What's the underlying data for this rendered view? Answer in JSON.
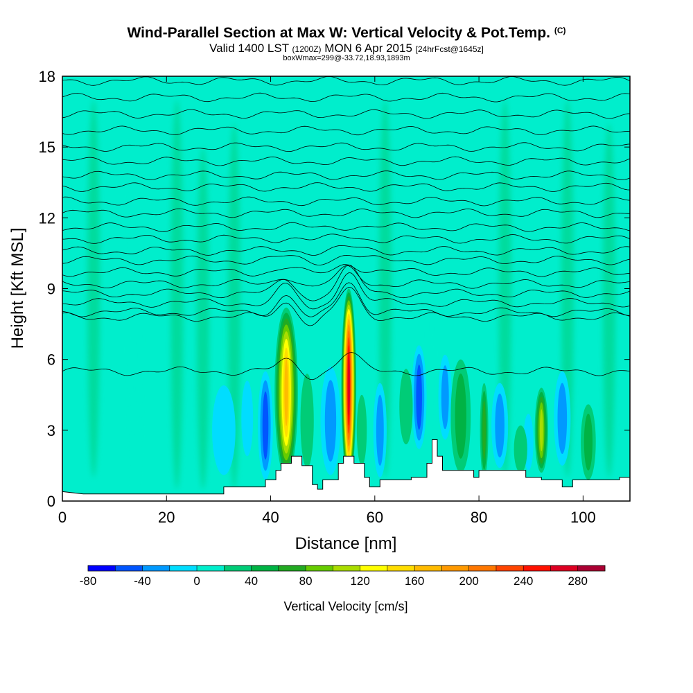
{
  "header": {
    "title_main": "Wind-Parallel Section at Max W: Vertical Velocity & Pot.Temp.",
    "title_mark": "(C)",
    "valid_a": "Valid 1400 LST",
    "valid_b": "(1200Z)",
    "valid_c": "MON 6 Apr 2015",
    "valid_d": "[24hrFcst@1645z]",
    "boxinfo": "boxWmax=299@-33.72,18.93,1893m"
  },
  "chart_data": {
    "type": "heatmap",
    "xlabel": "Distance [nm]",
    "ylabel": "Height [Kft MSL]",
    "xlim": [
      0,
      109
    ],
    "ylim": [
      0,
      18
    ],
    "x_ticks": [
      0,
      20,
      40,
      60,
      80,
      100
    ],
    "y_ticks": [
      0,
      3,
      6,
      9,
      12,
      15,
      18
    ],
    "colorbar": {
      "label": "Vertical Velocity [cm/s]",
      "min": -80,
      "max": 300,
      "step": 20,
      "tick_values": [
        -80,
        -40,
        0,
        40,
        80,
        120,
        160,
        200,
        240,
        280
      ],
      "colors": [
        "#0000ff",
        "#0055ff",
        "#0099ff",
        "#00ddff",
        "#00eecc",
        "#00cc77",
        "#00b344",
        "#22aa22",
        "#66cc00",
        "#aadd00",
        "#ffff00",
        "#ffdd00",
        "#ffbb00",
        "#ff9900",
        "#ff7700",
        "#ff4400",
        "#ff1100",
        "#dd0022",
        "#aa0033"
      ]
    },
    "background_w": 10,
    "terrain": [
      [
        0,
        0.4
      ],
      [
        4,
        0.3
      ],
      [
        31,
        0.3
      ],
      [
        31,
        0.6
      ],
      [
        39,
        0.6
      ],
      [
        39,
        0.9
      ],
      [
        41,
        0.9
      ],
      [
        41,
        1.3
      ],
      [
        42,
        1.3
      ],
      [
        42,
        1.6
      ],
      [
        44,
        1.6
      ],
      [
        44,
        1.9
      ],
      [
        46,
        1.9
      ],
      [
        46,
        1.5
      ],
      [
        48,
        1.5
      ],
      [
        48,
        0.7
      ],
      [
        49,
        0.7
      ],
      [
        49,
        0.5
      ],
      [
        50,
        0.5
      ],
      [
        50,
        0.9
      ],
      [
        53,
        0.9
      ],
      [
        53,
        1.6
      ],
      [
        54,
        1.6
      ],
      [
        54,
        1.9
      ],
      [
        56,
        1.9
      ],
      [
        56,
        1.6
      ],
      [
        58,
        1.6
      ],
      [
        58,
        1.0
      ],
      [
        59,
        1.0
      ],
      [
        59,
        0.6
      ],
      [
        61,
        0.6
      ],
      [
        61,
        0.9
      ],
      [
        67,
        0.9
      ],
      [
        67,
        1.0
      ],
      [
        70,
        1.0
      ],
      [
        70,
        1.6
      ],
      [
        71,
        1.6
      ],
      [
        71,
        2.6
      ],
      [
        72,
        2.6
      ],
      [
        72,
        1.9
      ],
      [
        73,
        1.9
      ],
      [
        73,
        1.3
      ],
      [
        79,
        1.3
      ],
      [
        79,
        1.0
      ],
      [
        80,
        1.0
      ],
      [
        80,
        1.3
      ],
      [
        89,
        1.3
      ],
      [
        89,
        1.0
      ],
      [
        92,
        1.0
      ],
      [
        92,
        0.9
      ],
      [
        96,
        0.9
      ],
      [
        96,
        0.6
      ],
      [
        98,
        0.6
      ],
      [
        98,
        0.9
      ],
      [
        107,
        0.9
      ],
      [
        107,
        1.0
      ],
      [
        109,
        1.0
      ]
    ],
    "updrafts": [
      {
        "x": 43.0,
        "y": 4.6,
        "w": 195,
        "wx": 1.4,
        "hy": 3.6
      },
      {
        "x": 55.0,
        "y": 4.9,
        "w": 290,
        "wx": 0.9,
        "hy": 4.1
      },
      {
        "x": 47.0,
        "y": 3.4,
        "w": 40,
        "wx": 0.8,
        "hy": 2.0
      },
      {
        "x": 76.5,
        "y": 3.6,
        "w": 60,
        "wx": 1.2,
        "hy": 2.4
      },
      {
        "x": 81.0,
        "y": 3.0,
        "w": 80,
        "wx": 0.5,
        "hy": 2.0
      },
      {
        "x": 92.0,
        "y": 3.0,
        "w": 120,
        "wx": 0.8,
        "hy": 1.8
      },
      {
        "x": 101.0,
        "y": 2.5,
        "w": 60,
        "wx": 0.9,
        "hy": 1.6
      },
      {
        "x": 66.0,
        "y": 4.0,
        "w": 50,
        "wx": 0.8,
        "hy": 1.6
      },
      {
        "x": 57.5,
        "y": 3.0,
        "w": 40,
        "wx": 0.6,
        "hy": 1.5
      },
      {
        "x": 88.0,
        "y": 2.2,
        "w": 40,
        "wx": 0.8,
        "hy": 1.0
      }
    ],
    "downdrafts": [
      {
        "x": 39.0,
        "y": 3.2,
        "w": -75,
        "wx": 0.9,
        "hy": 2.3
      },
      {
        "x": 51.5,
        "y": 3.4,
        "w": -50,
        "wx": 1.2,
        "hy": 2.3
      },
      {
        "x": 61.0,
        "y": 3.0,
        "w": -40,
        "wx": 0.8,
        "hy": 2.0
      },
      {
        "x": 68.5,
        "y": 4.4,
        "w": -65,
        "wx": 0.9,
        "hy": 2.2
      },
      {
        "x": 73.5,
        "y": 4.4,
        "w": -45,
        "wx": 0.8,
        "hy": 1.8
      },
      {
        "x": 84.0,
        "y": 3.2,
        "w": -45,
        "wx": 1.0,
        "hy": 1.8
      },
      {
        "x": 96.0,
        "y": 3.5,
        "w": -45,
        "wx": 1.0,
        "hy": 2.0
      },
      {
        "x": 31.0,
        "y": 3.0,
        "w": -30,
        "wx": 1.4,
        "hy": 1.9
      },
      {
        "x": 35.5,
        "y": 3.5,
        "w": -25,
        "wx": 0.7,
        "hy": 1.6
      },
      {
        "x": 89.5,
        "y": 2.5,
        "w": -35,
        "wx": 0.6,
        "hy": 1.2
      }
    ],
    "streaks": [
      {
        "x": 6,
        "w": 22,
        "y0": 1.0,
        "y1": 17
      },
      {
        "x": 14,
        "w": 18,
        "y0": 0.5,
        "y1": 16
      },
      {
        "x": 22,
        "w": 20,
        "y0": 0.5,
        "y1": 17
      },
      {
        "x": 27,
        "w": 25,
        "y0": 0.5,
        "y1": 15
      },
      {
        "x": 33,
        "w": 20,
        "y0": 0.5,
        "y1": 16
      },
      {
        "x": 62,
        "w": 22,
        "y0": 1.0,
        "y1": 17
      },
      {
        "x": 70,
        "w": 18,
        "y0": 1.0,
        "y1": 16
      },
      {
        "x": 85,
        "w": 20,
        "y0": 1.0,
        "y1": 17
      },
      {
        "x": 97,
        "w": 22,
        "y0": 1.0,
        "y1": 17
      },
      {
        "x": 105,
        "w": 20,
        "y0": 1.0,
        "y1": 16
      }
    ],
    "isentropes": [
      {
        "y": 5.5,
        "dome": 0.6
      },
      {
        "y": 7.8,
        "dome": 0.9
      },
      {
        "y": 8.0,
        "dome": 1.0
      },
      {
        "y": 8.4,
        "dome": 1.0
      },
      {
        "y": 8.8,
        "dome": 0.8
      },
      {
        "y": 9.2,
        "dome": 0.5
      },
      {
        "y": 9.7,
        "dome": 0.3
      },
      {
        "y": 10.2,
        "dome": 0.2
      },
      {
        "y": 10.6,
        "dome": 0.1
      },
      {
        "y": 11.1,
        "dome": 0.1
      },
      {
        "y": 11.6,
        "dome": 0.05
      },
      {
        "y": 12.2,
        "dome": 0
      },
      {
        "y": 12.7,
        "dome": 0
      },
      {
        "y": 13.3,
        "dome": 0
      },
      {
        "y": 13.8,
        "dome": 0
      },
      {
        "y": 14.4,
        "dome": 0
      },
      {
        "y": 15.0,
        "dome": 0
      },
      {
        "y": 15.7,
        "dome": 0
      },
      {
        "y": 16.4,
        "dome": 0
      },
      {
        "y": 17.1,
        "dome": 0
      },
      {
        "y": 17.8,
        "dome": 0
      }
    ]
  }
}
